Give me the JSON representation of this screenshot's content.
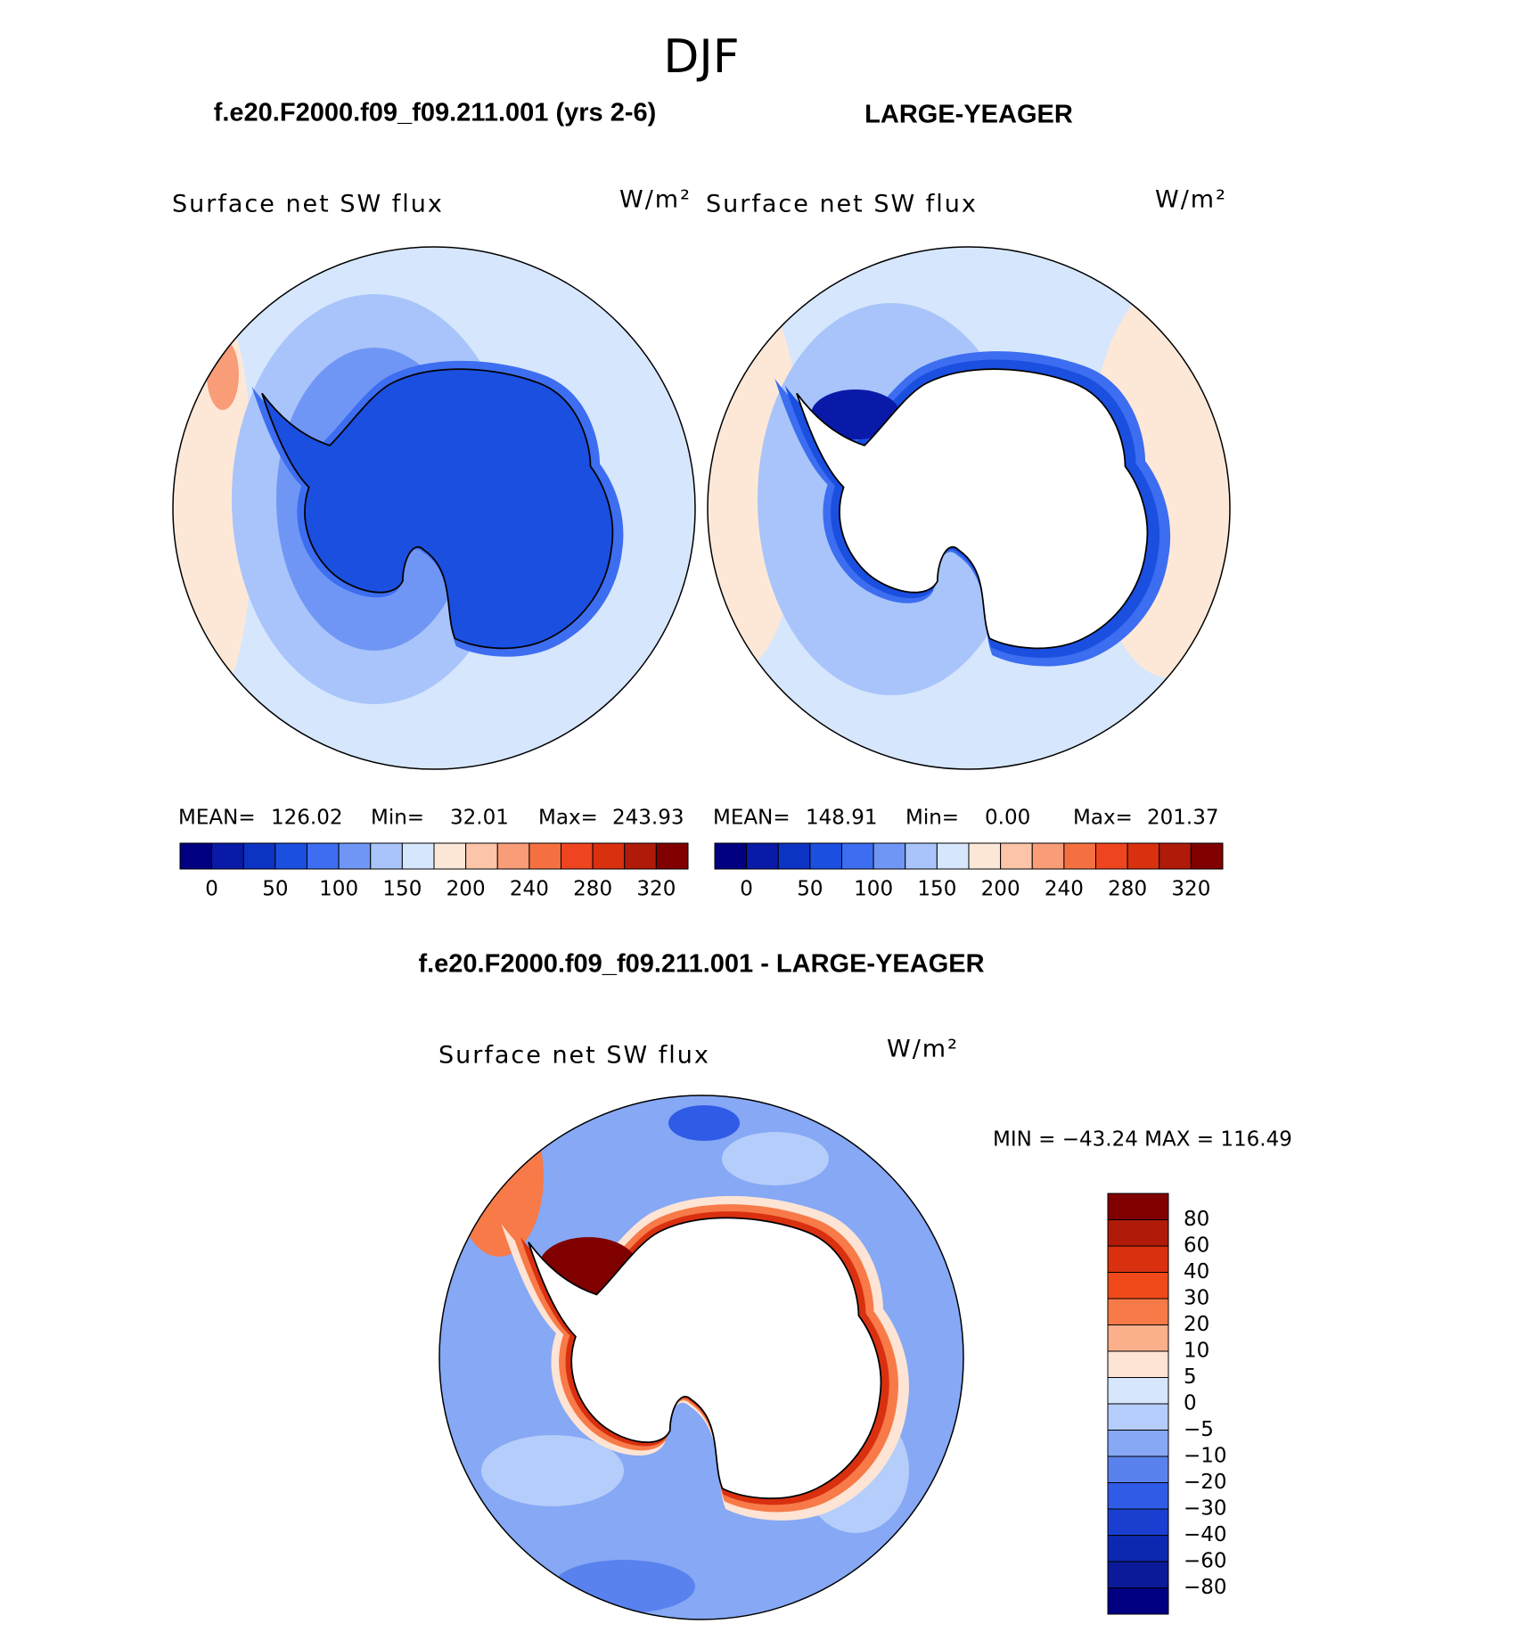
{
  "title": "DJF",
  "panels": [
    {
      "case": "f.e20.F2000.f09_f09.211.001 (yrs 2-6)",
      "variable": "Surface net SW flux",
      "units": "W/m²",
      "stats": [
        {
          "label": "MEAN=",
          "value": "126.02"
        },
        {
          "label": "Min=",
          "value": "32.01"
        },
        {
          "label": "Max=",
          "value": "243.93"
        }
      ]
    },
    {
      "case": "LARGE-YEAGER",
      "variable": "Surface net SW flux",
      "units": "W/m²",
      "stats": [
        {
          "label": "MEAN=",
          "value": "148.91"
        },
        {
          "label": "Min=",
          "value": "0.00"
        },
        {
          "label": "Max=",
          "value": "201.37"
        }
      ]
    }
  ],
  "colorbar": {
    "colors": [
      "#000080",
      "#0a1aa8",
      "#0d33c4",
      "#1a4fe0",
      "#3d6df0",
      "#7096f5",
      "#a8c4fa",
      "#d6e6fc",
      "#fde8d8",
      "#fcc4a8",
      "#f99c78",
      "#f57040",
      "#ee4420",
      "#d93010",
      "#b01a08",
      "#800000"
    ],
    "labels": [
      "0",
      "50",
      "100",
      "150",
      "200",
      "240",
      "280",
      "320"
    ]
  },
  "difference": {
    "title": "f.e20.F2000.f09_f09.211.001 - LARGE-YEAGER",
    "variable": "Surface net SW flux",
    "units": "W/m²",
    "range": "MIN = −43.24 MAX = 116.49",
    "colorbar": {
      "colors": [
        "#800000",
        "#b01a08",
        "#d93010",
        "#f04a1a",
        "#f77a48",
        "#fbb08c",
        "#fde4d4",
        "#d6e6fc",
        "#b4cdfa",
        "#86a8f5",
        "#5a82ee",
        "#2f5be6",
        "#1a3fd0",
        "#0d28b0",
        "#0a1a98",
        "#000080"
      ],
      "labels": [
        "80",
        "60",
        "40",
        "30",
        "20",
        "10",
        "5",
        "0",
        "−5",
        "−10",
        "−20",
        "−30",
        "−40",
        "−60",
        "−80"
      ]
    }
  }
}
